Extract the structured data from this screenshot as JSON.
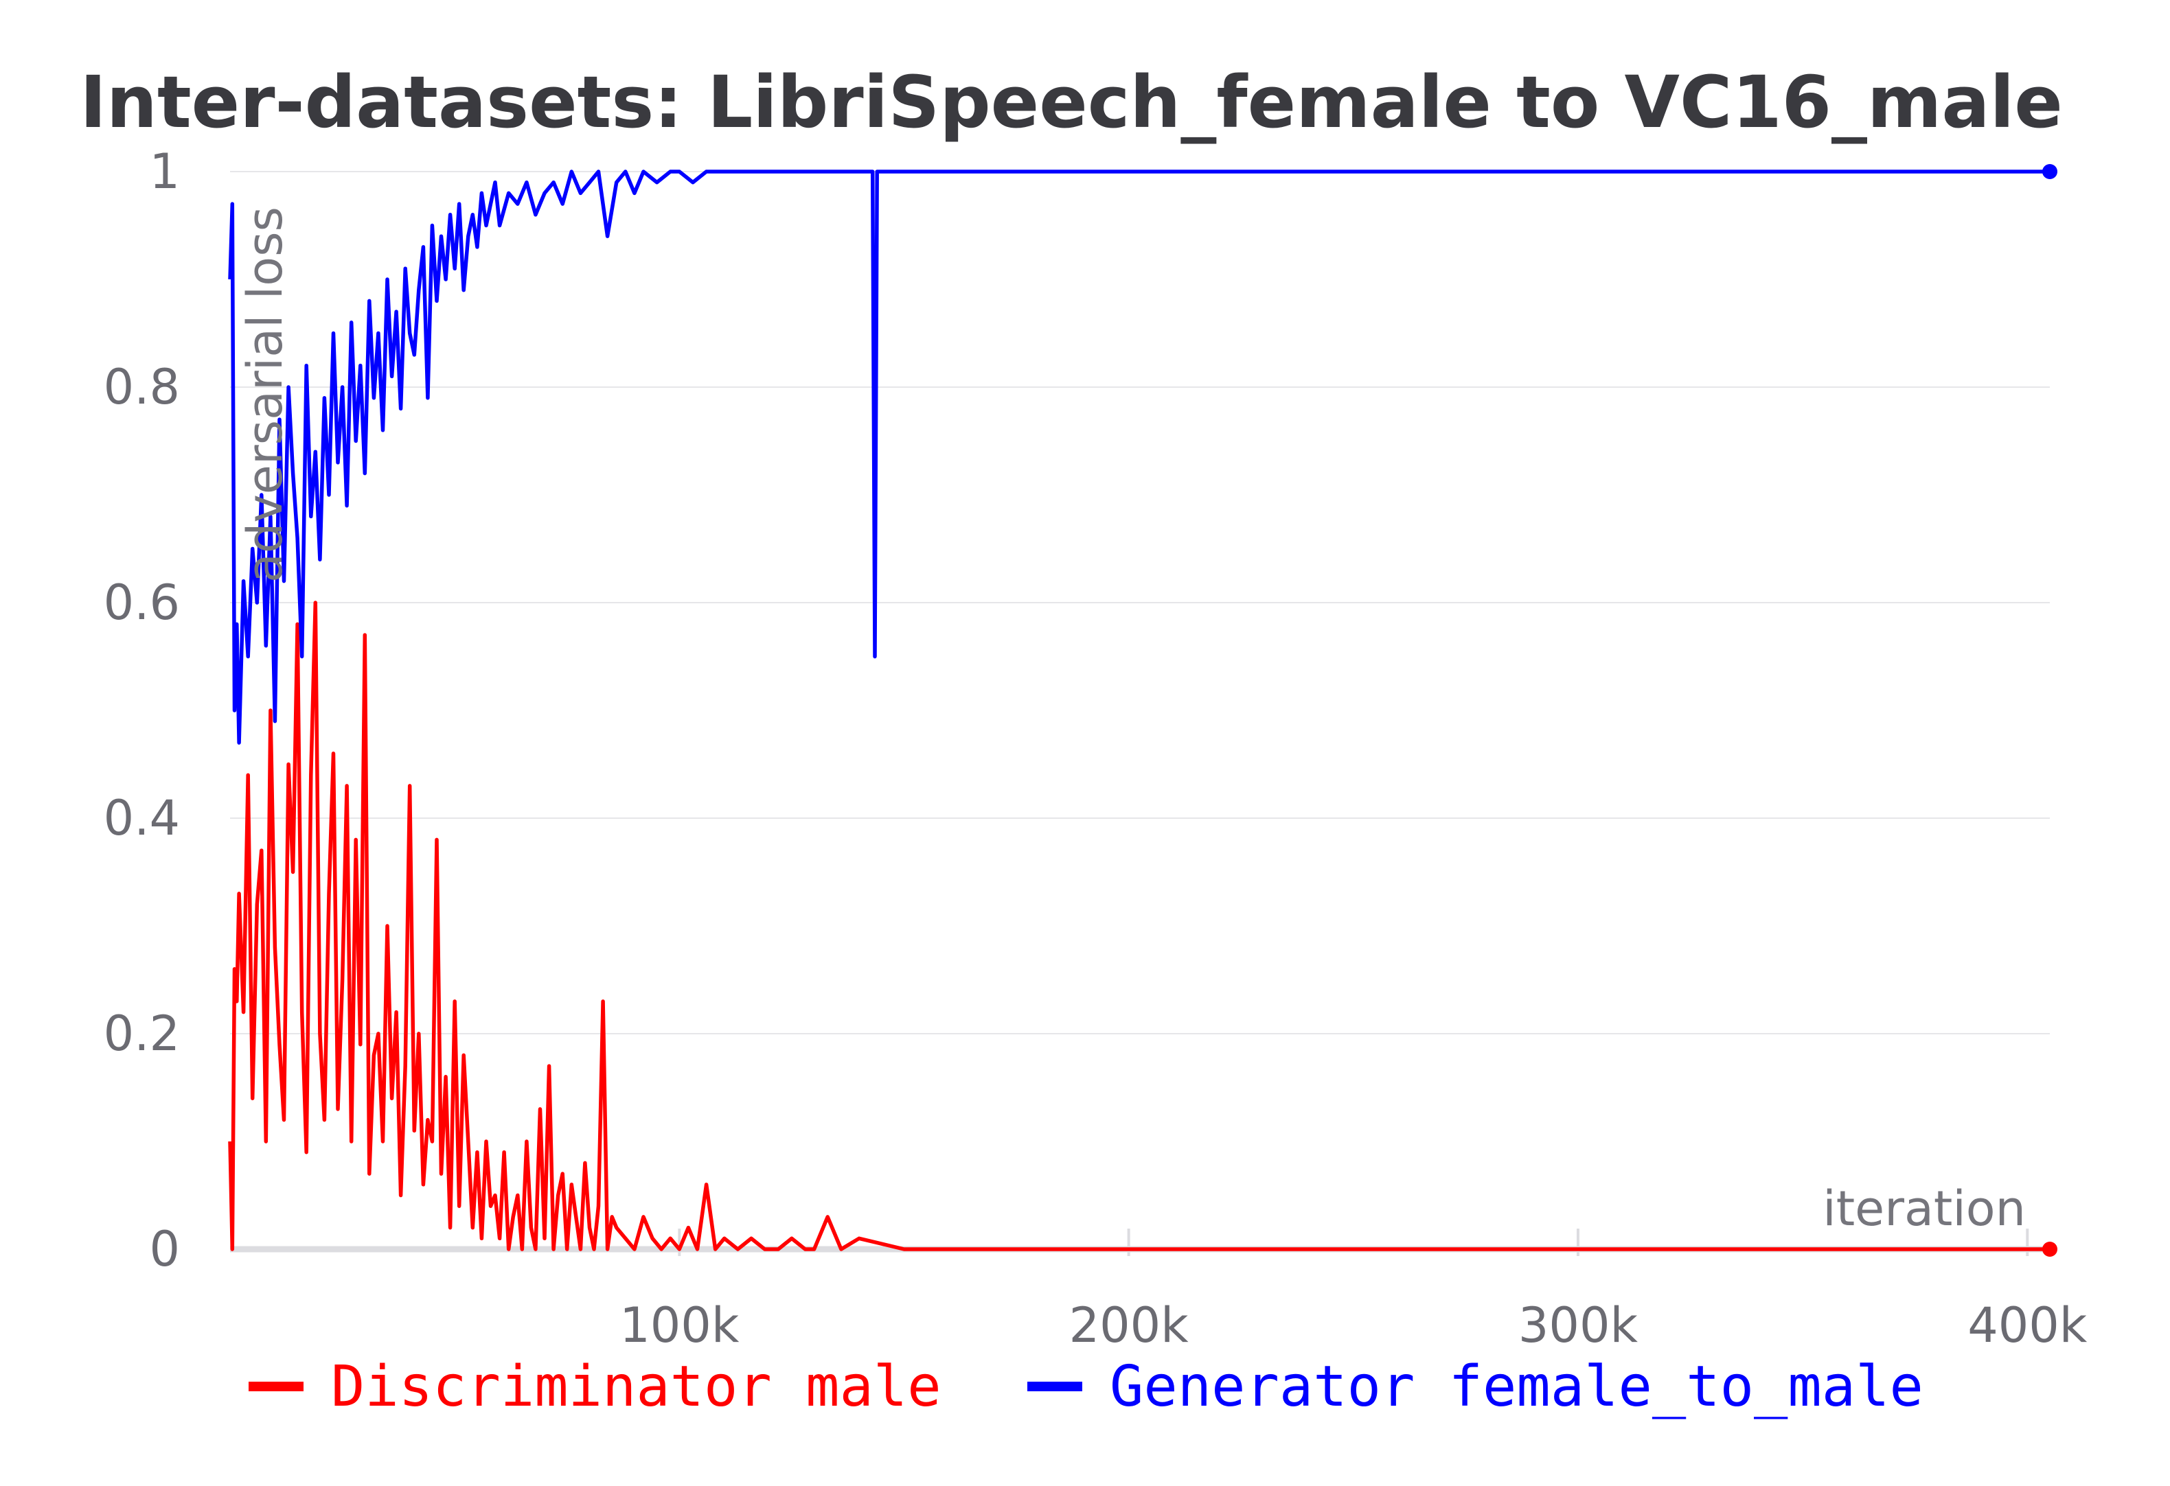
{
  "chart_data": {
    "type": "line",
    "title": "Inter-datasets: LibriSpeech_female to VC16_male",
    "xlabel": "iteration",
    "ylabel": "adversarial loss",
    "xlim": [
      0,
      405000
    ],
    "ylim": [
      0,
      1
    ],
    "x_ticks": [
      100000,
      200000,
      300000,
      400000
    ],
    "x_tick_labels": [
      "100k",
      "200k",
      "300k",
      "400k"
    ],
    "y_ticks": [
      0,
      0.2,
      0.4,
      0.6,
      0.8,
      1
    ],
    "y_tick_labels": [
      "0",
      "0.2",
      "0.4",
      "0.6",
      "0.8",
      "1"
    ],
    "grid": true,
    "legend_position": "bottom",
    "series": [
      {
        "name": "Discriminator male",
        "color": "#ff0000",
        "x": [
          0,
          500,
          1000,
          1500,
          2000,
          3000,
          4000,
          5000,
          6000,
          7000,
          8000,
          9000,
          10000,
          11000,
          12000,
          13000,
          14000,
          15000,
          16000,
          17000,
          18000,
          19000,
          20000,
          21000,
          22000,
          23000,
          24000,
          25000,
          26000,
          27000,
          28000,
          29000,
          30000,
          31000,
          32000,
          33000,
          34000,
          35000,
          36000,
          37000,
          38000,
          39000,
          40000,
          41000,
          42000,
          43000,
          44000,
          45000,
          46000,
          47000,
          48000,
          49000,
          50000,
          51000,
          52000,
          53000,
          54000,
          55000,
          56000,
          57000,
          58000,
          59000,
          60000,
          61000,
          62000,
          63000,
          64000,
          65000,
          66000,
          67000,
          68000,
          69000,
          70000,
          71000,
          72000,
          73000,
          74000,
          75000,
          76000,
          77000,
          78000,
          79000,
          80000,
          81000,
          82000,
          83000,
          84000,
          85000,
          86000,
          88000,
          90000,
          92000,
          94000,
          96000,
          98000,
          100000,
          102000,
          104000,
          106000,
          108000,
          110000,
          113000,
          116000,
          119000,
          122000,
          125000,
          128000,
          130000,
          133000,
          136000,
          140000,
          150000,
          200000,
          205000,
          210000,
          300000,
          405000
        ],
        "values": [
          0.1,
          0.0,
          0.26,
          0.23,
          0.33,
          0.22,
          0.44,
          0.14,
          0.32,
          0.37,
          0.1,
          0.5,
          0.28,
          0.19,
          0.12,
          0.45,
          0.35,
          0.58,
          0.22,
          0.09,
          0.44,
          0.6,
          0.2,
          0.12,
          0.33,
          0.46,
          0.13,
          0.25,
          0.43,
          0.1,
          0.38,
          0.19,
          0.57,
          0.07,
          0.18,
          0.2,
          0.1,
          0.3,
          0.14,
          0.22,
          0.05,
          0.17,
          0.43,
          0.11,
          0.2,
          0.06,
          0.12,
          0.1,
          0.38,
          0.07,
          0.16,
          0.02,
          0.23,
          0.04,
          0.18,
          0.1,
          0.02,
          0.09,
          0.01,
          0.1,
          0.04,
          0.05,
          0.01,
          0.09,
          0.0,
          0.03,
          0.05,
          0.0,
          0.1,
          0.02,
          0.0,
          0.13,
          0.01,
          0.17,
          0.0,
          0.05,
          0.07,
          0.0,
          0.06,
          0.03,
          0.0,
          0.08,
          0.02,
          0.0,
          0.04,
          0.23,
          0.0,
          0.03,
          0.02,
          0.01,
          0.0,
          0.03,
          0.01,
          0.0,
          0.01,
          0.0,
          0.02,
          0.0,
          0.06,
          0.0,
          0.01,
          0.0,
          0.01,
          0.0,
          0.0,
          0.01,
          0.0,
          0.0,
          0.03,
          0.0,
          0.01,
          0.0,
          0.0,
          0.0,
          0.0,
          0.0,
          0.0
        ]
      },
      {
        "name": "Generator female_to_male",
        "color": "#0000ff",
        "x": [
          0,
          500,
          1000,
          1500,
          2000,
          3000,
          4000,
          5000,
          6000,
          7000,
          8000,
          9000,
          10000,
          11000,
          12000,
          13000,
          14000,
          15000,
          16000,
          17000,
          18000,
          19000,
          20000,
          21000,
          22000,
          23000,
          24000,
          25000,
          26000,
          27000,
          28000,
          29000,
          30000,
          31000,
          32000,
          33000,
          34000,
          35000,
          36000,
          37000,
          38000,
          39000,
          40000,
          41000,
          42000,
          43000,
          44000,
          45000,
          46000,
          47000,
          48000,
          49000,
          50000,
          51000,
          52000,
          53000,
          54000,
          55000,
          56000,
          57000,
          58000,
          59000,
          60000,
          62000,
          64000,
          66000,
          68000,
          70000,
          72000,
          74000,
          76000,
          78000,
          80000,
          82000,
          84000,
          86000,
          88000,
          90000,
          92000,
          95000,
          98000,
          100000,
          103000,
          106000,
          110000,
          115000,
          120000,
          125000,
          130000,
          135000,
          140000,
          142000,
          143000,
          143500,
          144000,
          146000,
          150000,
          170000,
          200000,
          250000,
          300000,
          350000,
          405000
        ],
        "values": [
          0.9,
          0.97,
          0.5,
          0.58,
          0.47,
          0.62,
          0.55,
          0.65,
          0.6,
          0.7,
          0.56,
          0.68,
          0.49,
          0.77,
          0.62,
          0.8,
          0.72,
          0.66,
          0.55,
          0.82,
          0.68,
          0.74,
          0.64,
          0.79,
          0.7,
          0.85,
          0.73,
          0.8,
          0.69,
          0.86,
          0.75,
          0.82,
          0.72,
          0.88,
          0.79,
          0.85,
          0.76,
          0.9,
          0.81,
          0.87,
          0.78,
          0.91,
          0.85,
          0.83,
          0.89,
          0.93,
          0.79,
          0.95,
          0.88,
          0.94,
          0.9,
          0.96,
          0.91,
          0.97,
          0.89,
          0.94,
          0.96,
          0.93,
          0.98,
          0.95,
          0.97,
          0.99,
          0.95,
          0.98,
          0.97,
          0.99,
          0.96,
          0.98,
          0.99,
          0.97,
          1.0,
          0.98,
          0.99,
          1.0,
          0.94,
          0.99,
          1.0,
          0.98,
          1.0,
          0.99,
          1.0,
          1.0,
          0.99,
          1.0,
          1.0,
          1.0,
          1.0,
          1.0,
          1.0,
          1.0,
          1.0,
          1.0,
          1.0,
          0.55,
          1.0,
          1.0,
          1.0,
          1.0,
          1.0,
          1.0,
          1.0,
          1.0,
          1.0
        ]
      }
    ]
  }
}
